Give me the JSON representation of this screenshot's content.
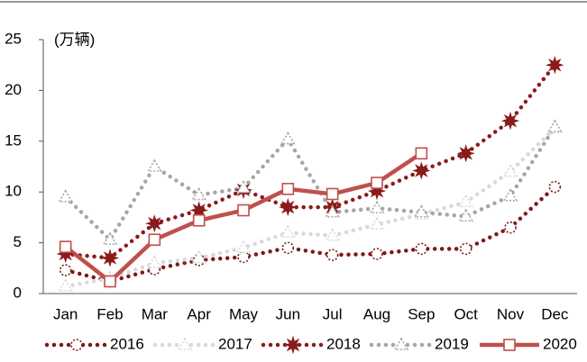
{
  "chart_data": {
    "type": "line",
    "unit_label": "(万辆)",
    "categories": [
      "Jan",
      "Feb",
      "Mar",
      "Apr",
      "May",
      "Jun",
      "Jul",
      "Aug",
      "Sep",
      "Oct",
      "Nov",
      "Dec"
    ],
    "ylim": [
      0,
      25
    ],
    "yticks": [
      0,
      5,
      10,
      15,
      20,
      25
    ],
    "legend": "bottom",
    "series": [
      {
        "name": "2016",
        "color": "#7b1a1a",
        "marker": "circle",
        "line_style": "dotted",
        "values": [
          2.3,
          1.2,
          2.4,
          3.3,
          3.6,
          4.5,
          3.8,
          3.9,
          4.4,
          4.4,
          6.5,
          10.5
        ]
      },
      {
        "name": "2017",
        "color": "#d9d9d9",
        "marker": "triangle",
        "line_style": "dotted",
        "values": [
          0.7,
          1.5,
          3.0,
          3.5,
          4.5,
          6.0,
          5.7,
          6.8,
          7.8,
          9.0,
          12.0,
          16.3
        ]
      },
      {
        "name": "2018",
        "color": "#8b1a1a",
        "marker": "star",
        "line_style": "dotted",
        "values": [
          3.9,
          3.5,
          6.9,
          8.2,
          10.2,
          8.5,
          8.5,
          10.1,
          12.1,
          13.8,
          17.0,
          22.5
        ]
      },
      {
        "name": "2019",
        "color": "#a6a6a6",
        "marker": "triangle",
        "line_style": "dotted",
        "values": [
          9.5,
          5.3,
          12.5,
          9.7,
          10.4,
          15.2,
          8.0,
          8.4,
          8.0,
          7.6,
          9.6,
          16.4
        ]
      },
      {
        "name": "2020",
        "color": "#c0504d",
        "marker": "square",
        "line_style": "solid",
        "values": [
          4.6,
          1.2,
          5.3,
          7.2,
          8.2,
          10.3,
          9.8,
          10.9,
          13.8,
          null,
          null,
          null
        ]
      }
    ]
  }
}
